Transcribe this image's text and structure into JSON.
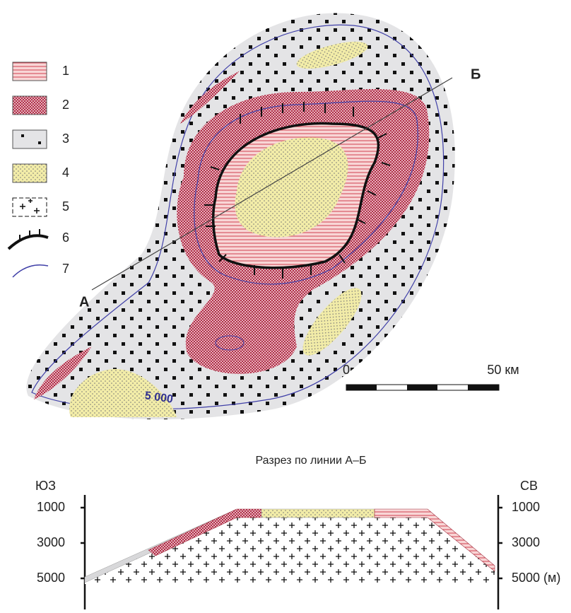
{
  "legend": {
    "items": [
      {
        "label": "1"
      },
      {
        "label": "2"
      },
      {
        "label": "3"
      },
      {
        "label": "4"
      },
      {
        "label": "5"
      },
      {
        "label": "6"
      },
      {
        "label": "7"
      }
    ]
  },
  "map": {
    "label_a": "А",
    "label_b": "Б",
    "contour_label": "5 000",
    "scale": {
      "start": "0",
      "end": "50 км"
    }
  },
  "section": {
    "title": "Разрез по линии А–Б",
    "left_label": "ЮЗ",
    "right_label": "СВ",
    "left_ticks": [
      "1000",
      "3000",
      "5000"
    ],
    "right_ticks": [
      "1000",
      "3000",
      "5000 (м)"
    ]
  }
}
